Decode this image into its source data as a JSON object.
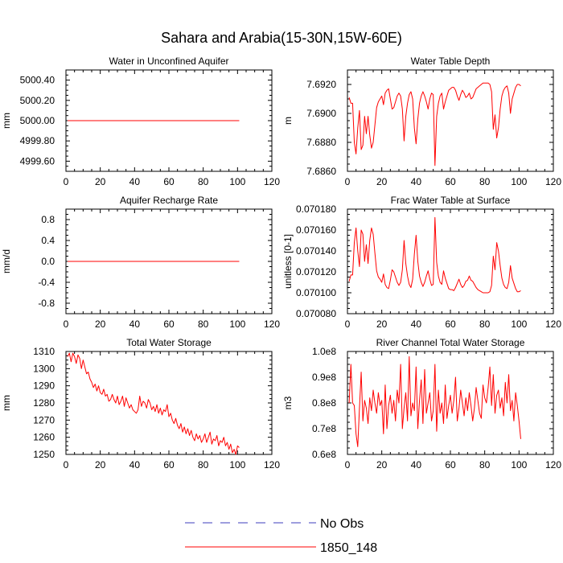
{
  "title": "Sahara and Arabia(15-30N,15W-60E)",
  "colors": {
    "model": "#ff0000",
    "obs": "#3c3cbe",
    "axis": "#000000"
  },
  "legend": [
    {
      "label": "No Obs",
      "style": "dashed",
      "color": "#3c3cbe"
    },
    {
      "label": "1850_148",
      "style": "solid",
      "color": "#ff0000"
    }
  ],
  "chart_data": [
    {
      "type": "line",
      "title": "Water in Unconfined Aquifer",
      "ylabel": "mm",
      "xlim": [
        0,
        120
      ],
      "ylim": [
        4999.5,
        5000.5
      ],
      "xticks": [
        0,
        20,
        40,
        60,
        80,
        100,
        120
      ],
      "yticks": [
        4999.6,
        4999.8,
        5000.0,
        5000.2,
        5000.4
      ],
      "yticklabels": [
        "4999.60",
        "4999.80",
        "5000.00",
        "5000.20",
        "5000.40"
      ],
      "series": [
        {
          "name": "1850_148",
          "x_start": 1,
          "x_step": 1,
          "values": [
            5000,
            5000,
            5000,
            5000,
            5000,
            5000,
            5000,
            5000,
            5000,
            5000,
            5000,
            5000,
            5000,
            5000,
            5000,
            5000,
            5000,
            5000,
            5000,
            5000,
            5000,
            5000,
            5000,
            5000,
            5000,
            5000,
            5000,
            5000,
            5000,
            5000,
            5000,
            5000,
            5000,
            5000,
            5000,
            5000,
            5000,
            5000,
            5000,
            5000,
            5000,
            5000,
            5000,
            5000,
            5000,
            5000,
            5000,
            5000,
            5000,
            5000,
            5000,
            5000,
            5000,
            5000,
            5000,
            5000,
            5000,
            5000,
            5000,
            5000,
            5000,
            5000,
            5000,
            5000,
            5000,
            5000,
            5000,
            5000,
            5000,
            5000,
            5000,
            5000,
            5000,
            5000,
            5000,
            5000,
            5000,
            5000,
            5000,
            5000,
            5000,
            5000,
            5000,
            5000,
            5000,
            5000,
            5000,
            5000,
            5000,
            5000,
            5000,
            5000,
            5000,
            5000,
            5000,
            5000,
            5000,
            5000,
            5000,
            5000,
            5000
          ]
        }
      ]
    },
    {
      "type": "line",
      "title": "Water Table Depth",
      "ylabel": "m",
      "xlim": [
        0,
        120
      ],
      "ylim": [
        7.686,
        7.693
      ],
      "xticks": [
        0,
        20,
        40,
        60,
        80,
        100,
        120
      ],
      "yticks": [
        7.686,
        7.688,
        7.69,
        7.692
      ],
      "yticklabels": [
        "7.6860",
        "7.6880",
        "7.6900",
        "7.6920"
      ],
      "series": [
        {
          "name": "1850_148",
          "x_start": 1,
          "x_step": 1,
          "values": [
            7.6911,
            7.6907,
            7.6907,
            7.688,
            7.6872,
            7.689,
            7.6902,
            7.6875,
            7.6878,
            7.6898,
            7.6886,
            7.6898,
            7.6885,
            7.6876,
            7.688,
            7.6892,
            7.6904,
            7.6908,
            7.691,
            7.6912,
            7.6906,
            7.6914,
            7.6916,
            7.6917,
            7.691,
            7.6903,
            7.6904,
            7.6908,
            7.6912,
            7.6914,
            7.6912,
            7.6903,
            7.6881,
            7.6898,
            7.6907,
            7.6913,
            7.6915,
            7.691,
            7.689,
            7.6879,
            7.6896,
            7.6907,
            7.6912,
            7.6915,
            7.6912,
            7.6908,
            7.6903,
            7.691,
            7.6914,
            7.6913,
            7.6864,
            7.6898,
            7.6907,
            7.6912,
            7.6914,
            7.6903,
            7.6908,
            7.6912,
            7.6916,
            7.6917,
            7.6918,
            7.6918,
            7.6916,
            7.6912,
            7.6909,
            7.6913,
            7.6916,
            7.6914,
            7.6911,
            7.6912,
            7.6914,
            7.691,
            7.6911,
            7.6914,
            7.6917,
            7.6918,
            7.6919,
            7.692,
            7.6921,
            7.6921,
            7.6921,
            7.6921,
            7.692,
            7.6915,
            7.6889,
            7.6899,
            7.6883,
            7.689,
            7.6903,
            7.6912,
            7.6916,
            7.6918,
            7.6919,
            7.6914,
            7.69,
            7.691,
            7.6914,
            7.6918,
            7.692,
            7.692,
            7.6919
          ]
        }
      ]
    },
    {
      "type": "line",
      "title": "Aquifer Recharge Rate",
      "ylabel": "mm/d",
      "xlim": [
        0,
        120
      ],
      "ylim": [
        -1.0,
        1.0
      ],
      "xticks": [
        0,
        20,
        40,
        60,
        80,
        100,
        120
      ],
      "yticks": [
        -0.8,
        -0.4,
        0.0,
        0.4,
        0.8
      ],
      "yticklabels": [
        "-0.8",
        "-0.4",
        "0.0",
        "0.4",
        "0.8"
      ],
      "series": [
        {
          "name": "1850_148",
          "x_start": 1,
          "x_step": 1,
          "values": [
            0,
            0,
            0,
            0,
            0,
            0,
            0,
            0,
            0,
            0,
            0,
            0,
            0,
            0,
            0,
            0,
            0,
            0,
            0,
            0,
            0,
            0,
            0,
            0,
            0,
            0,
            0,
            0,
            0,
            0,
            0,
            0,
            0,
            0,
            0,
            0,
            0,
            0,
            0,
            0,
            0,
            0,
            0,
            0,
            0,
            0,
            0,
            0,
            0,
            0,
            0,
            0,
            0,
            0,
            0,
            0,
            0,
            0,
            0,
            0,
            0,
            0,
            0,
            0,
            0,
            0,
            0,
            0,
            0,
            0,
            0,
            0,
            0,
            0,
            0,
            0,
            0,
            0,
            0,
            0,
            0,
            0,
            0,
            0,
            0,
            0,
            0,
            0,
            0,
            0,
            0,
            0,
            0,
            0,
            0,
            0,
            0,
            0,
            0,
            0,
            0
          ]
        }
      ]
    },
    {
      "type": "line",
      "title": "Frac Water Table at Surface",
      "ylabel": "unitless [0-1]",
      "xlim": [
        0,
        120
      ],
      "ylim": [
        0.07008,
        0.07018
      ],
      "xticks": [
        0,
        20,
        40,
        60,
        80,
        100,
        120
      ],
      "yticks": [
        0.07008,
        0.0701,
        0.07012,
        0.07014,
        0.07016,
        0.07018
      ],
      "yticklabels": [
        "0.070080",
        "0.070100",
        "0.070120",
        "0.070140",
        "0.070160",
        "0.070180"
      ],
      "series": [
        {
          "name": "1850_148",
          "x_start": 1,
          "x_step": 1,
          "values": [
            0.070111,
            0.070117,
            0.070117,
            0.070148,
            0.070162,
            0.07014,
            0.070125,
            0.07016,
            0.070156,
            0.07013,
            0.070146,
            0.070128,
            0.07015,
            0.070162,
            0.070156,
            0.070138,
            0.070121,
            0.070115,
            0.070113,
            0.07011,
            0.070118,
            0.070108,
            0.070105,
            0.070104,
            0.070112,
            0.070122,
            0.07012,
            0.070115,
            0.07011,
            0.070107,
            0.07011,
            0.070122,
            0.07015,
            0.070128,
            0.070116,
            0.070108,
            0.070105,
            0.070113,
            0.070137,
            0.070155,
            0.07013,
            0.070116,
            0.07011,
            0.070106,
            0.07011,
            0.070116,
            0.070121,
            0.070113,
            0.070107,
            0.070108,
            0.070172,
            0.070129,
            0.070116,
            0.07011,
            0.070108,
            0.070121,
            0.070114,
            0.070109,
            0.070104,
            0.070103,
            0.070103,
            0.070102,
            0.070105,
            0.070109,
            0.070113,
            0.070108,
            0.070105,
            0.070107,
            0.070111,
            0.070112,
            0.070116,
            0.070112,
            0.070111,
            0.070108,
            0.070105,
            0.070103,
            0.070102,
            0.070101,
            0.0701,
            0.0701,
            0.0701,
            0.0701,
            0.070101,
            0.070107,
            0.070135,
            0.070122,
            0.070148,
            0.07014,
            0.070126,
            0.070114,
            0.070108,
            0.070105,
            0.070104,
            0.07011,
            0.070126,
            0.070114,
            0.070109,
            0.070104,
            0.070101,
            0.070101,
            0.070102
          ]
        }
      ]
    },
    {
      "type": "line",
      "title": "Total Water Storage",
      "ylabel": "mm",
      "xlim": [
        0,
        120
      ],
      "ylim": [
        1250,
        1310
      ],
      "xticks": [
        0,
        20,
        40,
        60,
        80,
        100,
        120
      ],
      "yticks": [
        1250,
        1260,
        1270,
        1280,
        1290,
        1300,
        1310
      ],
      "yticklabels": [
        "1250",
        "1260",
        "1270",
        "1280",
        "1290",
        "1300",
        "1310"
      ],
      "series": [
        {
          "name": "1850_148",
          "x_start": 1,
          "x_step": 1,
          "values": [
            1307,
            1309,
            1304,
            1309,
            1307,
            1303,
            1308,
            1306,
            1300,
            1305,
            1301,
            1297,
            1298,
            1294,
            1292,
            1289,
            1291,
            1287,
            1290,
            1286,
            1285,
            1288,
            1284,
            1285,
            1281,
            1282,
            1285,
            1282,
            1280,
            1284,
            1279,
            1281,
            1284,
            1278,
            1283,
            1280,
            1277,
            1279,
            1276,
            1275,
            1274,
            1276,
            1284,
            1278,
            1281,
            1280,
            1277,
            1282,
            1280,
            1276,
            1278,
            1275,
            1279,
            1274,
            1277,
            1273,
            1276,
            1275,
            1279,
            1272,
            1274,
            1270,
            1268,
            1271,
            1267,
            1265,
            1268,
            1263,
            1266,
            1262,
            1265,
            1261,
            1264,
            1260,
            1258,
            1262,
            1259,
            1261,
            1257,
            1259,
            1262,
            1257,
            1260,
            1263,
            1256,
            1259,
            1258,
            1261,
            1255,
            1258,
            1257,
            1260,
            1255,
            1257,
            1253,
            1256,
            1251,
            1253,
            1250,
            1255,
            1254
          ]
        }
      ]
    },
    {
      "type": "line",
      "title": "River Channel Total Water Storage",
      "ylabel": "m3",
      "xlim": [
        0,
        120
      ],
      "ylim": [
        60000000,
        100000000
      ],
      "xticks": [
        0,
        20,
        40,
        60,
        80,
        100,
        120
      ],
      "yticks": [
        60000000,
        70000000,
        80000000,
        90000000,
        100000000
      ],
      "yticklabels": [
        "0.6e8",
        "0.7e8",
        "0.8e8",
        "0.9e8",
        "1.0e8"
      ],
      "series": [
        {
          "name": "1850_148",
          "x_start": 1,
          "x_step": 1,
          "values": [
            80000000,
            95000000,
            80000000,
            79000000,
            68000000,
            63000000,
            78000000,
            92000000,
            73000000,
            81000000,
            78000000,
            72000000,
            82000000,
            77000000,
            85000000,
            80000000,
            76000000,
            84000000,
            79000000,
            81000000,
            68000000,
            87000000,
            70000000,
            79000000,
            83000000,
            76000000,
            81000000,
            73000000,
            85000000,
            80000000,
            95000000,
            70000000,
            78000000,
            84000000,
            73000000,
            98000000,
            75000000,
            80000000,
            77000000,
            94000000,
            70000000,
            81000000,
            89000000,
            72000000,
            93000000,
            76000000,
            80000000,
            84000000,
            73000000,
            77000000,
            95000000,
            69000000,
            85000000,
            76000000,
            80000000,
            72000000,
            87000000,
            74000000,
            79000000,
            83000000,
            76000000,
            81000000,
            90000000,
            73000000,
            78000000,
            85000000,
            80000000,
            75000000,
            82000000,
            77000000,
            84000000,
            79000000,
            73000000,
            78000000,
            86000000,
            81000000,
            76000000,
            74000000,
            87000000,
            82000000,
            80000000,
            86000000,
            94000000,
            79000000,
            91000000,
            76000000,
            83000000,
            85000000,
            78000000,
            82000000,
            75000000,
            88000000,
            80000000,
            91000000,
            77000000,
            81000000,
            73000000,
            84000000,
            79000000,
            73000000,
            66000000
          ]
        }
      ]
    }
  ]
}
